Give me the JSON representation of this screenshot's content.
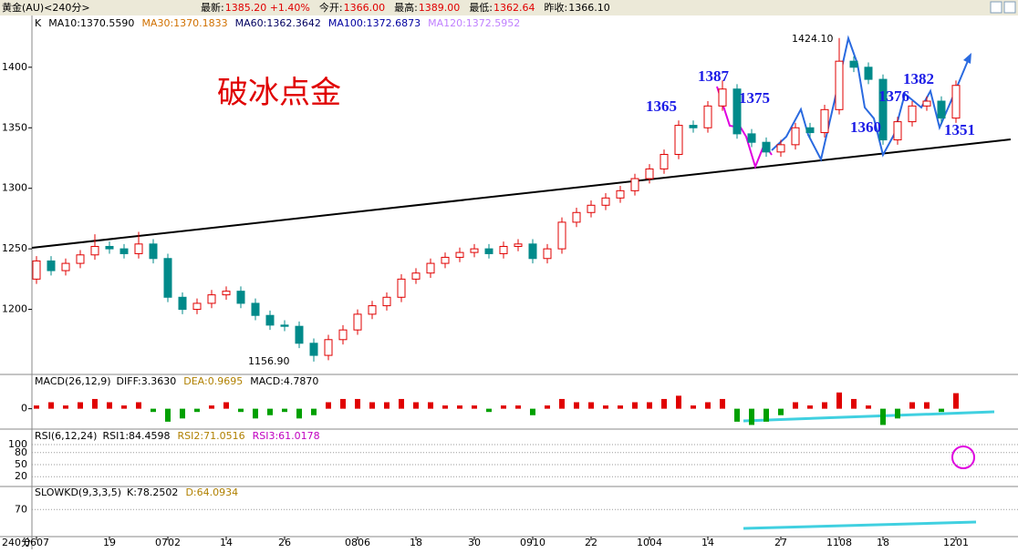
{
  "header": {
    "symbol": "黄金(AU)<240分>",
    "quote": [
      {
        "label": "最新:",
        "value": "1385.20 +1.40%"
      },
      {
        "label": "今开:",
        "value": "1366.00"
      },
      {
        "label": "最高:",
        "value": "1389.00"
      },
      {
        "label": "最低:",
        "value": "1362.64"
      },
      {
        "label": "昨收:",
        "value": "1366.10"
      }
    ]
  },
  "chart_data": {
    "type": "candlestick",
    "title": "破冰点金",
    "legend": [
      {
        "text": "K",
        "color": "#000000"
      },
      {
        "text": "MA10:1370.5590",
        "color": "#000000"
      },
      {
        "text": "MA30:1370.1833",
        "color": "#d07000"
      },
      {
        "text": "MA60:1362.3642",
        "color": "#000060"
      },
      {
        "text": "MA100:1372.6873",
        "color": "#0000a0"
      },
      {
        "text": "MA120:1372.5952",
        "color": "#c080ff"
      }
    ],
    "categories": [
      "0607",
      null,
      null,
      null,
      null,
      "19",
      null,
      null,
      null,
      "0702",
      null,
      null,
      null,
      "14",
      null,
      null,
      null,
      "26",
      null,
      null,
      null,
      null,
      "0806",
      null,
      null,
      null,
      "18",
      null,
      null,
      null,
      "30",
      null,
      null,
      null,
      "0910",
      null,
      null,
      null,
      "22",
      null,
      null,
      null,
      "1004",
      null,
      null,
      null,
      "14",
      null,
      null,
      null,
      null,
      "27",
      null,
      null,
      null,
      "1108",
      null,
      null,
      "18",
      null,
      null,
      null,
      null,
      "1201"
    ],
    "open": [
      1225,
      1240,
      1232,
      1238,
      1245,
      1252,
      1250,
      1246,
      1254,
      1242,
      1210,
      1200,
      1205,
      1212,
      1215,
      1205,
      1195,
      1187,
      1186,
      1172,
      1162,
      1175,
      1183,
      1196,
      1203,
      1210,
      1225,
      1230,
      1238,
      1243,
      1247,
      1250,
      1246,
      1252,
      1254,
      1242,
      1250,
      1272,
      1280,
      1286,
      1292,
      1298,
      1308,
      1316,
      1328,
      1352,
      1350,
      1368,
      1382,
      1345,
      1338,
      1330,
      1336,
      1350,
      1346,
      1365,
      1405,
      1400,
      1390,
      1340,
      1355,
      1368,
      1372,
      1358
    ],
    "high": [
      1244,
      1244,
      1242,
      1249,
      1262,
      1256,
      1254,
      1264,
      1258,
      1246,
      1214,
      1209,
      1216,
      1219,
      1219,
      1209,
      1199,
      1191,
      1190,
      1176,
      1179,
      1187,
      1200,
      1207,
      1214,
      1229,
      1234,
      1242,
      1247,
      1251,
      1254,
      1254,
      1256,
      1258,
      1258,
      1254,
      1276,
      1284,
      1290,
      1296,
      1302,
      1312,
      1320,
      1332,
      1356,
      1356,
      1372,
      1389,
      1386,
      1349,
      1342,
      1340,
      1354,
      1354,
      1369,
      1424.1,
      1409,
      1404,
      1394,
      1359,
      1372,
      1376,
      1376,
      1389
    ],
    "low": [
      1221,
      1228,
      1228,
      1234,
      1241,
      1246,
      1242,
      1242,
      1238,
      1206,
      1196,
      1196,
      1201,
      1208,
      1201,
      1191,
      1183,
      1182,
      1168,
      1156.9,
      1158,
      1171,
      1179,
      1192,
      1199,
      1206,
      1221,
      1226,
      1234,
      1239,
      1243,
      1242,
      1242,
      1248,
      1238,
      1238,
      1246,
      1268,
      1276,
      1282,
      1288,
      1294,
      1304,
      1312,
      1324,
      1346,
      1346,
      1364,
      1341,
      1334,
      1326,
      1326,
      1332,
      1342,
      1342,
      1361,
      1396,
      1386,
      1336,
      1336,
      1351,
      1364,
      1354,
      1354
    ],
    "close": [
      1240,
      1232,
      1238,
      1245,
      1252,
      1250,
      1246,
      1254,
      1242,
      1210,
      1200,
      1205,
      1212,
      1215,
      1205,
      1195,
      1187,
      1186,
      1172,
      1162,
      1175,
      1183,
      1196,
      1203,
      1210,
      1225,
      1230,
      1238,
      1243,
      1247,
      1250,
      1246,
      1252,
      1254,
      1242,
      1250,
      1272,
      1280,
      1286,
      1292,
      1298,
      1308,
      1316,
      1328,
      1352,
      1350,
      1368,
      1382,
      1345,
      1338,
      1330,
      1336,
      1350,
      1346,
      1365,
      1405,
      1400,
      1390,
      1340,
      1355,
      1368,
      1372,
      1358,
      1385
    ],
    "up_color": "#e00000",
    "down_color": "#008a8a",
    "ylim": [
      1147,
      1442
    ],
    "yticks": [
      1200,
      1250,
      1300,
      1350,
      1400
    ],
    "annotations": [
      "1424.10",
      "1387",
      "1365",
      "1375",
      "1360",
      "1376",
      "1382",
      "1351",
      "1156.90"
    ],
    "period_label": "240分"
  },
  "macd": {
    "label": "MACD(26,12,9)",
    "stats": [
      {
        "text": "DIFF:3.3630",
        "color": "#000000"
      },
      {
        "text": "DEA:0.9695",
        "color": "#b08000"
      },
      {
        "text": "MACD:4.7870",
        "color": "#000000"
      }
    ],
    "values": [
      1,
      2,
      1,
      2,
      3,
      2,
      1,
      2,
      -1,
      -4,
      -3,
      -1,
      1,
      2,
      -1,
      -3,
      -2,
      -1,
      -3,
      -2,
      2,
      3,
      3,
      2,
      2,
      3,
      2,
      2,
      1,
      1,
      1,
      -1,
      1,
      1,
      -2,
      1,
      3,
      2,
      2,
      1,
      1,
      2,
      2,
      3,
      4,
      1,
      2,
      3,
      -4,
      -5,
      -4,
      -2,
      2,
      1,
      2,
      5,
      3,
      1,
      -5,
      -3,
      2,
      2,
      -1,
      4.787
    ],
    "ylim": [
      -6,
      10
    ],
    "yticks": [
      0
    ]
  },
  "rsi": {
    "label": "RSI(6,12,24)",
    "stats": [
      {
        "text": "RSI1:84.4598",
        "color": "#000000"
      },
      {
        "text": "RSI2:71.0516",
        "color": "#b08000"
      },
      {
        "text": "RSI3:61.0178",
        "color": "#c000c0"
      }
    ],
    "ylim": [
      0,
      100
    ],
    "yticks": [
      20,
      50,
      80,
      100
    ]
  },
  "kd": {
    "label": "SLOWKD(9,3,3,5)",
    "stats": [
      {
        "text": "K:78.2502",
        "color": "#000000"
      },
      {
        "text": "D:64.0934",
        "color": "#b08000"
      }
    ],
    "ylim": [
      0,
      100
    ],
    "yticks": [
      70
    ]
  }
}
